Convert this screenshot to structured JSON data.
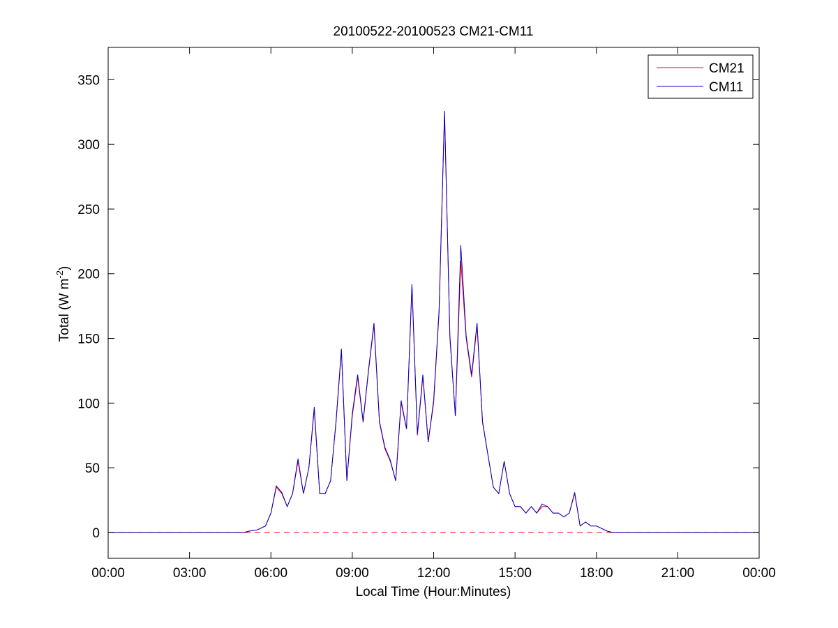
{
  "chart_data": {
    "type": "line",
    "title": "20100522-20100523 CM21-CM11",
    "xlabel": "Local Time (Hour:Minutes)",
    "ylabel_main": "Total (W m",
    "ylabel_sup": "-2",
    "ylabel_close": ")",
    "xlim": [
      0,
      24
    ],
    "ylim": [
      -20,
      375
    ],
    "x_ticks": [
      0,
      3,
      6,
      9,
      12,
      15,
      18,
      21,
      24
    ],
    "x_tick_labels": [
      "00:00",
      "03:00",
      "06:00",
      "09:00",
      "12:00",
      "15:00",
      "18:00",
      "21:00",
      "00:00"
    ],
    "y_ticks": [
      0,
      50,
      100,
      150,
      200,
      250,
      300,
      350
    ],
    "y_tick_labels": [
      "0",
      "50",
      "100",
      "150",
      "200",
      "250",
      "300",
      "350"
    ],
    "grid": false,
    "legend_position": "top-right",
    "reference_line": {
      "y": 0,
      "style": "dashed",
      "color": "#ff0000"
    },
    "series": [
      {
        "name": "CM21",
        "color": "#ff0000",
        "style": "solid",
        "x": [
          0,
          1,
          2,
          3,
          4,
          5,
          5.2,
          5.5,
          5.8,
          6.0,
          6.2,
          6.4,
          6.6,
          6.8,
          7.0,
          7.2,
          7.4,
          7.6,
          7.8,
          8.0,
          8.2,
          8.4,
          8.6,
          8.8,
          9.0,
          9.2,
          9.4,
          9.6,
          9.8,
          10.0,
          10.2,
          10.4,
          10.6,
          10.8,
          11.0,
          11.2,
          11.4,
          11.6,
          11.8,
          12.0,
          12.2,
          12.4,
          12.6,
          12.8,
          13.0,
          13.2,
          13.4,
          13.6,
          13.8,
          14.0,
          14.2,
          14.4,
          14.6,
          14.8,
          15.0,
          15.2,
          15.4,
          15.6,
          15.8,
          16.0,
          16.2,
          16.4,
          16.6,
          16.8,
          17.0,
          17.2,
          17.4,
          17.6,
          17.8,
          18.0,
          18.2,
          18.4,
          18.6,
          18.8,
          19.0,
          20,
          21,
          22,
          23,
          24
        ],
        "y": [
          0,
          0,
          0,
          0,
          0,
          0,
          1,
          2,
          5,
          15,
          35,
          30,
          20,
          30,
          55,
          30,
          50,
          95,
          30,
          30,
          40,
          85,
          140,
          40,
          90,
          120,
          85,
          125,
          160,
          85,
          65,
          55,
          40,
          100,
          80,
          190,
          75,
          120,
          70,
          100,
          170,
          325,
          150,
          90,
          210,
          150,
          120,
          160,
          85,
          60,
          35,
          30,
          55,
          30,
          20,
          20,
          15,
          20,
          15,
          20,
          20,
          15,
          15,
          12,
          15,
          30,
          5,
          8,
          5,
          5,
          3,
          1,
          0,
          0,
          0,
          0,
          0,
          0,
          0,
          0
        ]
      },
      {
        "name": "CM11",
        "color": "#0000cc",
        "style": "solid",
        "x": [
          0,
          1,
          2,
          3,
          4,
          5,
          5.2,
          5.5,
          5.8,
          6.0,
          6.2,
          6.4,
          6.6,
          6.8,
          7.0,
          7.2,
          7.4,
          7.6,
          7.8,
          8.0,
          8.2,
          8.4,
          8.6,
          8.8,
          9.0,
          9.2,
          9.4,
          9.6,
          9.8,
          10.0,
          10.2,
          10.4,
          10.6,
          10.8,
          11.0,
          11.2,
          11.4,
          11.6,
          11.8,
          12.0,
          12.2,
          12.4,
          12.6,
          12.8,
          13.0,
          13.2,
          13.4,
          13.6,
          13.8,
          14.0,
          14.2,
          14.4,
          14.6,
          14.8,
          15.0,
          15.2,
          15.4,
          15.6,
          15.8,
          16.0,
          16.2,
          16.4,
          16.6,
          16.8,
          17.0,
          17.2,
          17.4,
          17.6,
          17.8,
          18.0,
          18.2,
          18.4,
          18.6,
          18.8,
          19.0,
          20,
          21,
          22,
          23,
          24
        ],
        "y": [
          0,
          0,
          0,
          0,
          0,
          0,
          1,
          2,
          5,
          15,
          36,
          31,
          20,
          30,
          57,
          30,
          50,
          97,
          30,
          30,
          40,
          86,
          142,
          40,
          92,
          122,
          86,
          126,
          162,
          86,
          66,
          56,
          40,
          102,
          80,
          192,
          76,
          122,
          70,
          102,
          172,
          326,
          152,
          90,
          222,
          152,
          122,
          162,
          86,
          60,
          35,
          30,
          55,
          30,
          20,
          20,
          15,
          20,
          15,
          22,
          20,
          15,
          15,
          12,
          15,
          31,
          5,
          8,
          5,
          5,
          3,
          1,
          0,
          0,
          0,
          0,
          0,
          0,
          0,
          0
        ]
      }
    ]
  }
}
